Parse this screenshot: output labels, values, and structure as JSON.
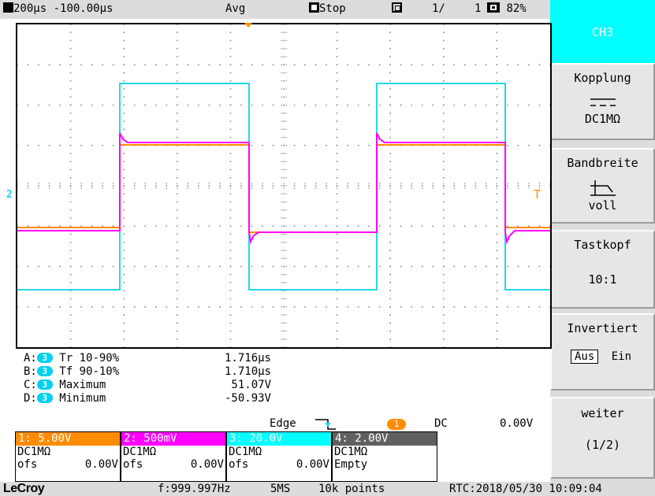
{
  "topbar": {
    "timebase": "200µs",
    "delay": "-100.00µs",
    "acq_mode": "Avg",
    "run_state": "Stop",
    "avg_count": "1/",
    "seq_count": "1",
    "battery": "82%"
  },
  "menu": {
    "channel": "CH3",
    "coupling_label": "Kopplung",
    "coupling_value": "DC1MΩ",
    "bandwidth_label": "Bandbreite",
    "bandwidth_value": "voll",
    "probe_label": "Tastkopf",
    "probe_value": "10:1",
    "invert_label": "Invertiert",
    "invert_off": "Aus",
    "invert_on": "Ein",
    "next_label": "weiter",
    "page": "(1/2)"
  },
  "screen": {
    "trigger_level_marker": "T",
    "ch2_ground_marker": "2"
  },
  "measurements": [
    {
      "slot": "A:",
      "src": "3",
      "name": "Tr 10-90%",
      "value": "1.716µs"
    },
    {
      "slot": "B:",
      "src": "3",
      "name": "Tf 90-10%",
      "value": "1.710µs"
    },
    {
      "slot": "C:",
      "src": "3",
      "name": "Maximum",
      "value": "51.07V"
    },
    {
      "slot": "D:",
      "src": "3",
      "name": "Minimum",
      "value": "-50.93V"
    }
  ],
  "trigger": {
    "type": "Edge",
    "source": "1",
    "coupling": "DC",
    "level": "0.00V"
  },
  "channels": [
    {
      "label": "1: 5.00V",
      "coupling": "DC1MΩ",
      "ofs_label": "ofs",
      "ofs_value": "0.00V",
      "color": "#ff8c00"
    },
    {
      "label": "2: 500mV",
      "coupling": "DC1MΩ",
      "ofs_label": "ofs",
      "ofs_value": "0.00V",
      "color": "#ff00ff"
    },
    {
      "label": "3: 20.0V",
      "coupling": "DC1MΩ",
      "ofs_label": "ofs",
      "ofs_value": "0.00V",
      "color": "#00ffff"
    },
    {
      "label": "4: 2.00V",
      "coupling": "DC1MΩ",
      "ofs_label": "Empty",
      "ofs_value": "",
      "color": "#606060"
    }
  ],
  "bottombar": {
    "brand": "LeCroy",
    "frequency": "f:999.997Hz",
    "sample_rate": "5MS",
    "points": "10k points",
    "rtc": "RTC:2018/05/30 10:09:04"
  }
}
